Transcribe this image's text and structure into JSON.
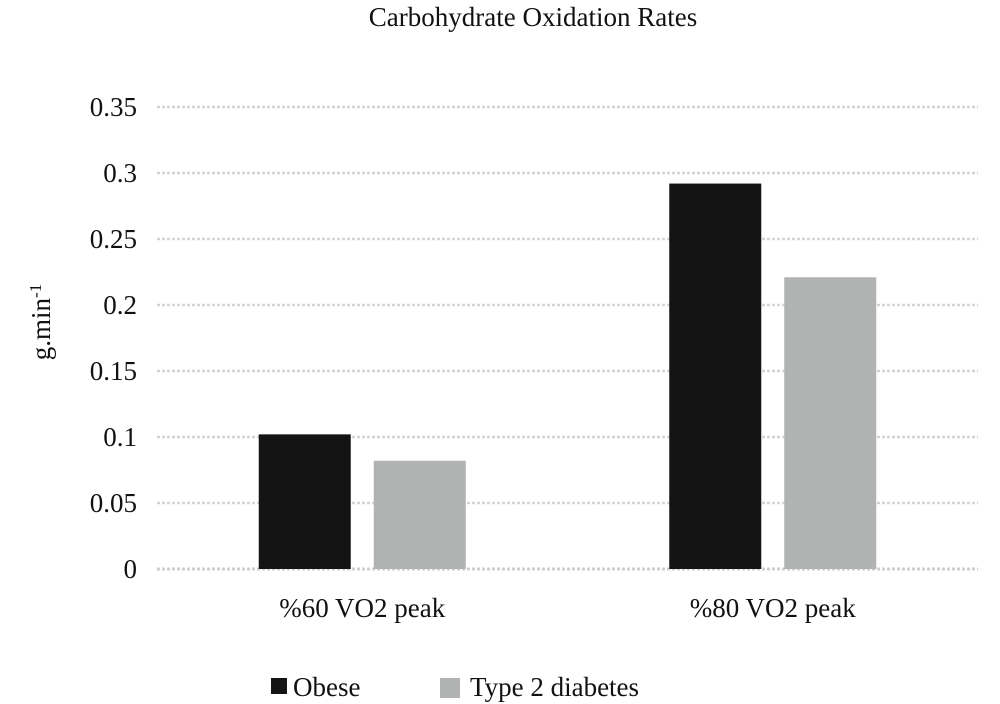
{
  "chart_data": {
    "type": "bar",
    "title": "Carbohydrate Oxidation Rates",
    "ylabel": "g.min",
    "ylabel_superscript": "-1",
    "xlabel": "",
    "categories": [
      "%60 VO2 peak",
      "%80 VO2 peak"
    ],
    "series": [
      {
        "name": "Obese",
        "values": [
          0.102,
          0.292
        ],
        "color": "#141414"
      },
      {
        "name": "Type 2 diabetes",
        "values": [
          0.082,
          0.221
        ],
        "color": "#b0b3b2"
      }
    ],
    "ylim": [
      0,
      0.35
    ],
    "yticks": [
      "0",
      "0.05",
      "0.1",
      "0.15",
      "0.2",
      "0.25",
      "0.3",
      "0.35"
    ],
    "grid": true,
    "legend_position": "bottom"
  }
}
